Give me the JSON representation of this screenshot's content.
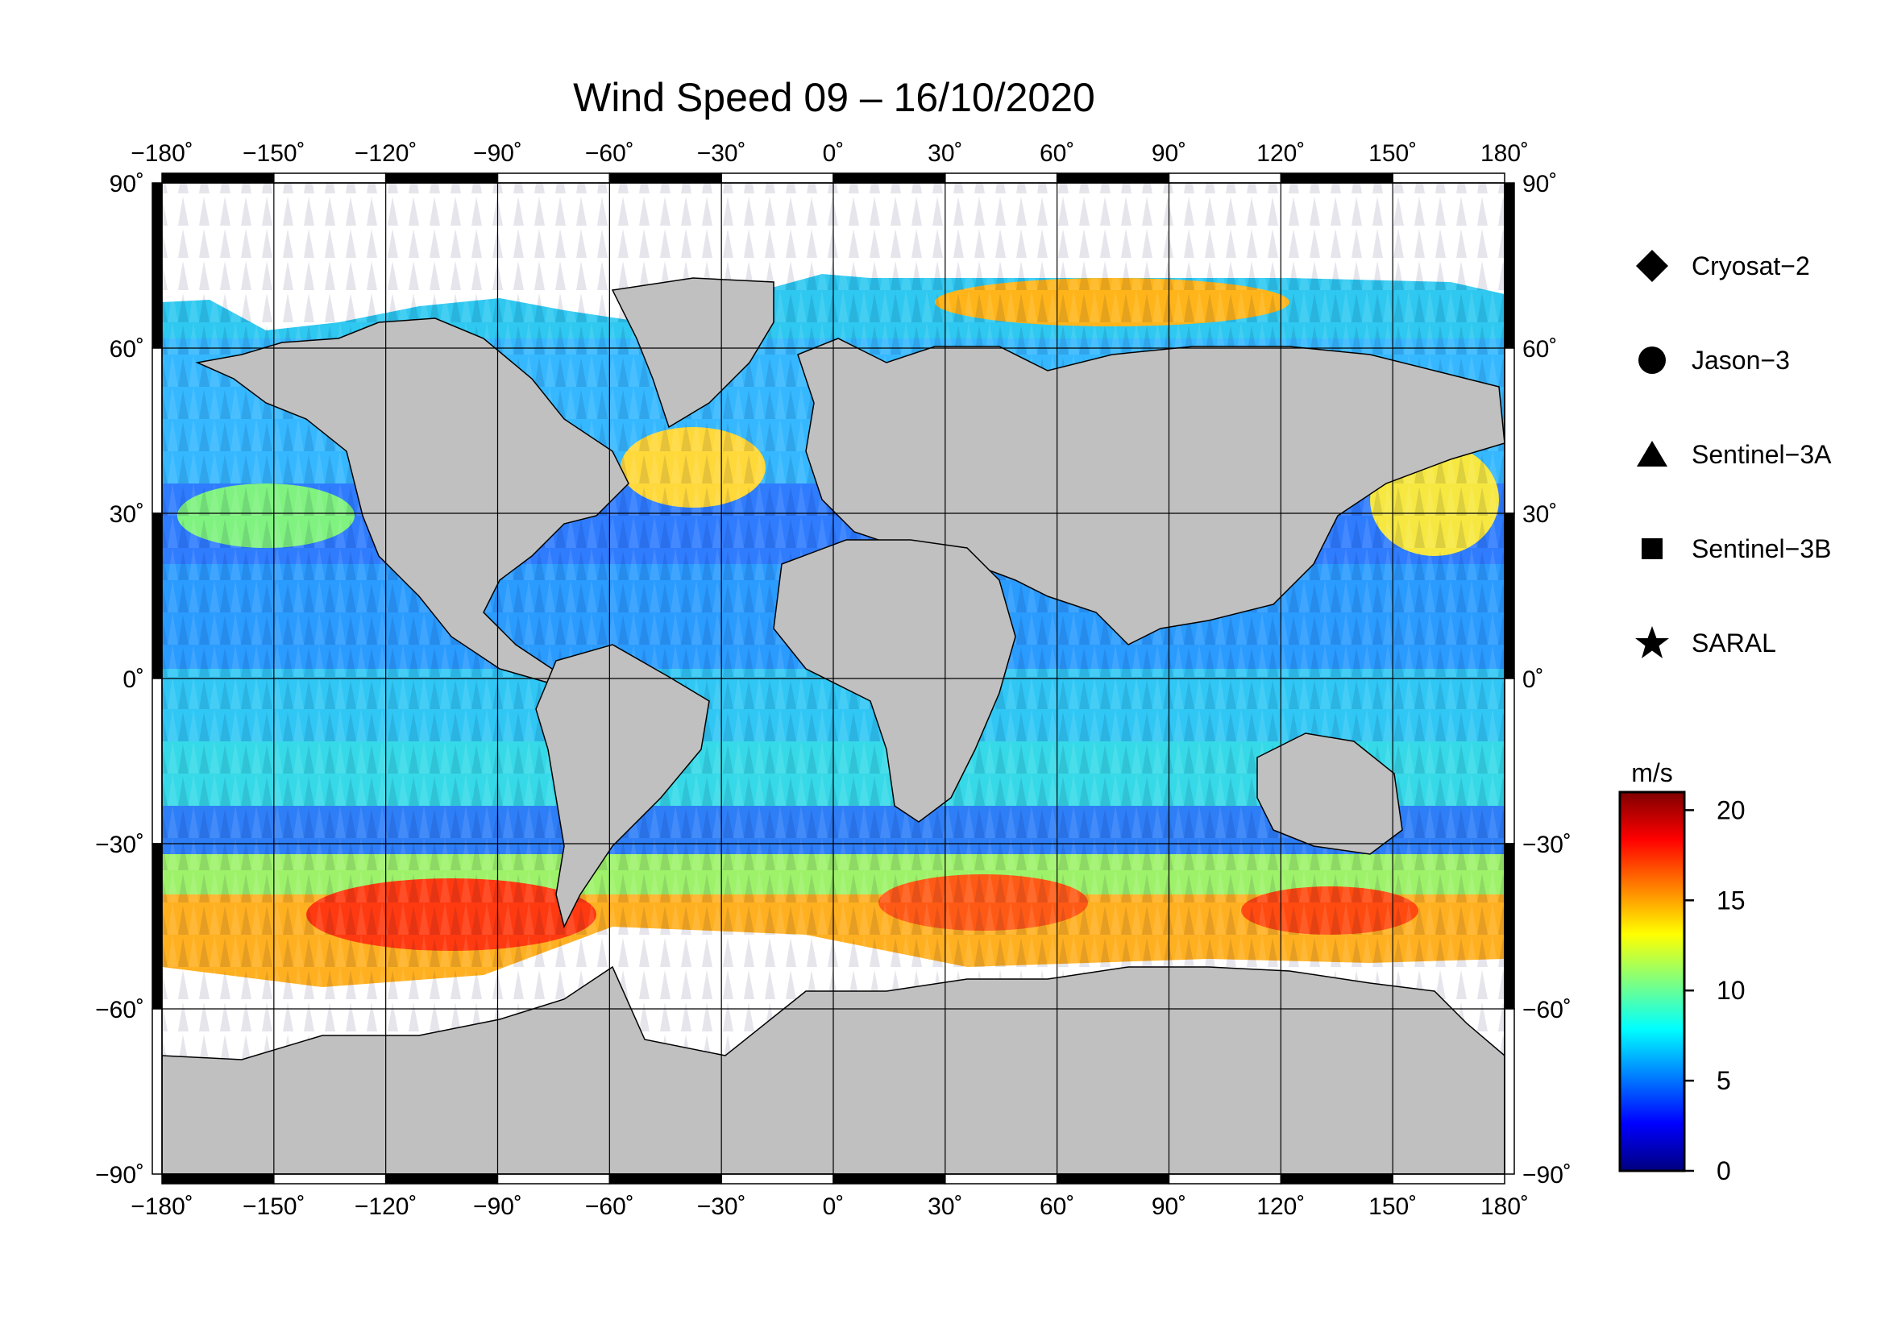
{
  "title": "Wind Speed 09 – 16/10/2020",
  "lon_ticks": [
    "−180˚",
    "−150˚",
    "−120˚",
    "−90˚",
    "−60˚",
    "−30˚",
    "0˚",
    "30˚",
    "60˚",
    "90˚",
    "120˚",
    "150˚",
    "180˚"
  ],
  "lat_ticks": [
    "90˚",
    "60˚",
    "30˚",
    "0˚",
    "−30˚",
    "−60˚",
    "−90˚"
  ],
  "legend": {
    "items": [
      {
        "label": "Cryosat−2",
        "icon": "diamond-icon"
      },
      {
        "label": "Jason−3",
        "icon": "circle-icon"
      },
      {
        "label": "Sentinel−3A",
        "icon": "triangle-icon"
      },
      {
        "label": "Sentinel−3B",
        "icon": "square-icon"
      },
      {
        "label": "SARAL",
        "icon": "star-icon"
      }
    ]
  },
  "colorbar": {
    "unit": "m/s",
    "ticks": [
      "20",
      "15",
      "10",
      "5",
      "0"
    ],
    "range": [
      0,
      21
    ],
    "stops": [
      "#00007f",
      "#0000ff",
      "#007fff",
      "#00ffff",
      "#7fff7f",
      "#ffff00",
      "#ff7f00",
      "#ff0000",
      "#7f0000"
    ]
  },
  "colors": {
    "land": "#c0c0c0",
    "ice": "#ffffff",
    "frame": "#000000"
  }
}
